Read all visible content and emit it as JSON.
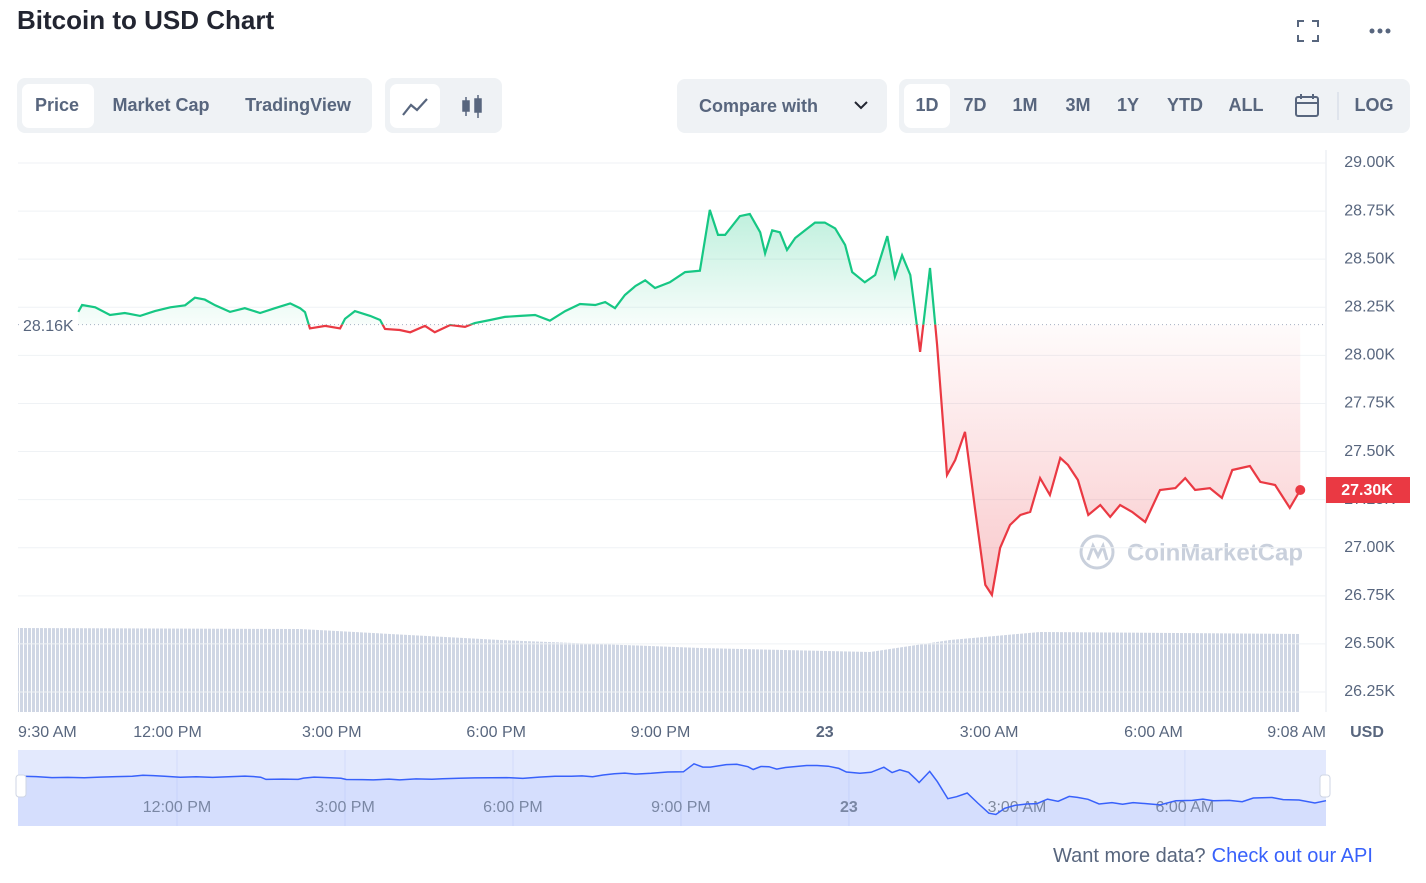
{
  "header": {
    "title": "Bitcoin to USD Chart"
  },
  "toolbar": {
    "views": [
      "Price",
      "Market Cap",
      "TradingView"
    ],
    "compare": "Compare with",
    "ranges": [
      "1D",
      "7D",
      "1M",
      "3M",
      "1Y",
      "YTD",
      "ALL"
    ],
    "log": "LOG"
  },
  "chart_data": {
    "type": "line",
    "x": [
      10.37,
      10.44,
      10.68,
      10.95,
      11.22,
      11.5,
      11.77,
      12.05,
      12.32,
      12.5,
      12.68,
      12.87,
      13.14,
      13.41,
      13.69,
      13.96,
      14.24,
      14.42,
      14.51,
      14.6,
      14.88,
      15.15,
      15.24,
      15.42,
      15.7,
      15.88,
      15.97,
      16.24,
      16.43,
      16.7,
      16.88,
      17.16,
      17.43,
      17.61,
      17.89,
      18.16,
      18.44,
      18.71,
      18.98,
      19.26,
      19.53,
      19.81,
      19.99,
      20.17,
      20.35,
      20.54,
      20.72,
      20.9,
      21.17,
      21.45,
      21.72,
      21.9,
      22.05,
      22.18,
      22.45,
      22.63,
      22.82,
      22.91,
      23.04,
      23.18,
      23.31,
      23.46,
      23.64,
      23.82,
      24.0,
      24.19,
      24.37,
      24.5,
      24.73,
      24.92,
      25.14,
      25.28,
      25.41,
      25.56,
      25.68,
      25.74,
      25.92,
      26.05,
      26.23,
      26.38,
      26.56,
      26.74,
      26.93,
      27.05,
      27.2,
      27.38,
      27.57,
      27.75,
      27.93,
      28.11,
      28.3,
      28.44,
      28.62,
      28.81,
      29.03,
      29.21,
      29.39,
      29.61,
      29.85,
      30.12,
      30.4,
      30.58,
      30.76,
      31.03,
      31.25,
      31.44,
      31.76,
      31.95,
      32.22,
      32.49,
      32.68
    ],
    "values": [
      28.226,
      28.262,
      28.25,
      28.21,
      28.22,
      28.205,
      28.23,
      28.25,
      28.26,
      28.3,
      28.29,
      28.26,
      28.226,
      28.245,
      28.22,
      28.245,
      28.27,
      28.245,
      28.225,
      28.14,
      28.153,
      28.14,
      28.19,
      28.23,
      28.205,
      28.184,
      28.137,
      28.132,
      28.12,
      28.153,
      28.12,
      28.158,
      28.148,
      28.168,
      28.184,
      28.2,
      28.205,
      28.21,
      28.18,
      28.23,
      28.267,
      28.262,
      28.277,
      28.245,
      28.314,
      28.36,
      28.39,
      28.35,
      28.38,
      28.433,
      28.44,
      28.756,
      28.626,
      28.626,
      28.724,
      28.735,
      28.64,
      28.53,
      28.65,
      28.64,
      28.548,
      28.61,
      28.65,
      28.69,
      28.69,
      28.66,
      28.574,
      28.433,
      28.38,
      28.418,
      28.62,
      28.408,
      28.52,
      28.418,
      28.158,
      28.018,
      28.454,
      28.054,
      27.378,
      27.456,
      27.602,
      27.207,
      26.807,
      26.755,
      26.999,
      27.118,
      27.17,
      27.186,
      27.362,
      27.274,
      27.467,
      27.43,
      27.352,
      27.17,
      27.222,
      27.16,
      27.222,
      27.186,
      27.134,
      27.3,
      27.31,
      27.362,
      27.3,
      27.31,
      27.259,
      27.404,
      27.425,
      27.342,
      27.326,
      27.207,
      27.3
    ],
    "up_color": "#16c784",
    "down_color": "#ea3943",
    "baseline": {
      "value": 28.16,
      "label": "28.16K"
    },
    "current_price": {
      "value": 27.3,
      "label": "27.30K"
    },
    "currency": "USD",
    "watermark": "CoinMarketCap",
    "xlim": [
      9.27,
      33.15
    ],
    "xticks": [
      {
        "value": 9.5,
        "label": "9:30 AM"
      },
      {
        "value": 12,
        "label": "12:00 PM"
      },
      {
        "value": 15,
        "label": "3:00 PM"
      },
      {
        "value": 18,
        "label": "6:00 PM"
      },
      {
        "value": 21,
        "label": "9:00 PM"
      },
      {
        "value": 24,
        "label": "23"
      },
      {
        "value": 27,
        "label": "3:00 AM"
      },
      {
        "value": 30,
        "label": "6:00 AM"
      },
      {
        "value": 33.133,
        "label": "9:08 AM"
      }
    ],
    "ylim": [
      26.25,
      29.0
    ],
    "yticks": [
      {
        "value": 26.25,
        "label": "26.25K"
      },
      {
        "value": 26.5,
        "label": "26.50K"
      },
      {
        "value": 26.75,
        "label": "26.75K"
      },
      {
        "value": 27,
        "label": "27.00K"
      },
      {
        "value": 27.25,
        "label": "27.25K"
      },
      {
        "value": 27.5,
        "label": "27.50K"
      },
      {
        "value": 27.75,
        "label": "27.75K"
      },
      {
        "value": 28,
        "label": "28.00K"
      },
      {
        "value": 28.25,
        "label": "28.25K"
      },
      {
        "value": 28.5,
        "label": "28.50K"
      },
      {
        "value": 28.75,
        "label": "28.75K"
      },
      {
        "value": 29,
        "label": "29.00K"
      }
    ],
    "grid": true
  },
  "navigator": {
    "xlim": [
      9.16,
      32.52
    ],
    "ylim": [
      26.3,
      29.3
    ],
    "color": "#3861fb",
    "xticks": [
      {
        "value": 12,
        "label": "12:00 PM"
      },
      {
        "value": 15,
        "label": "3:00 PM"
      },
      {
        "value": 18,
        "label": "6:00 PM"
      },
      {
        "value": 21,
        "label": "9:00 PM"
      },
      {
        "value": 24,
        "label": "23"
      },
      {
        "value": 27,
        "label": "3:00 AM"
      },
      {
        "value": 30,
        "label": "6:00 AM"
      }
    ]
  },
  "footer": {
    "prompt": "Want more data?",
    "link": "Check out our API"
  }
}
